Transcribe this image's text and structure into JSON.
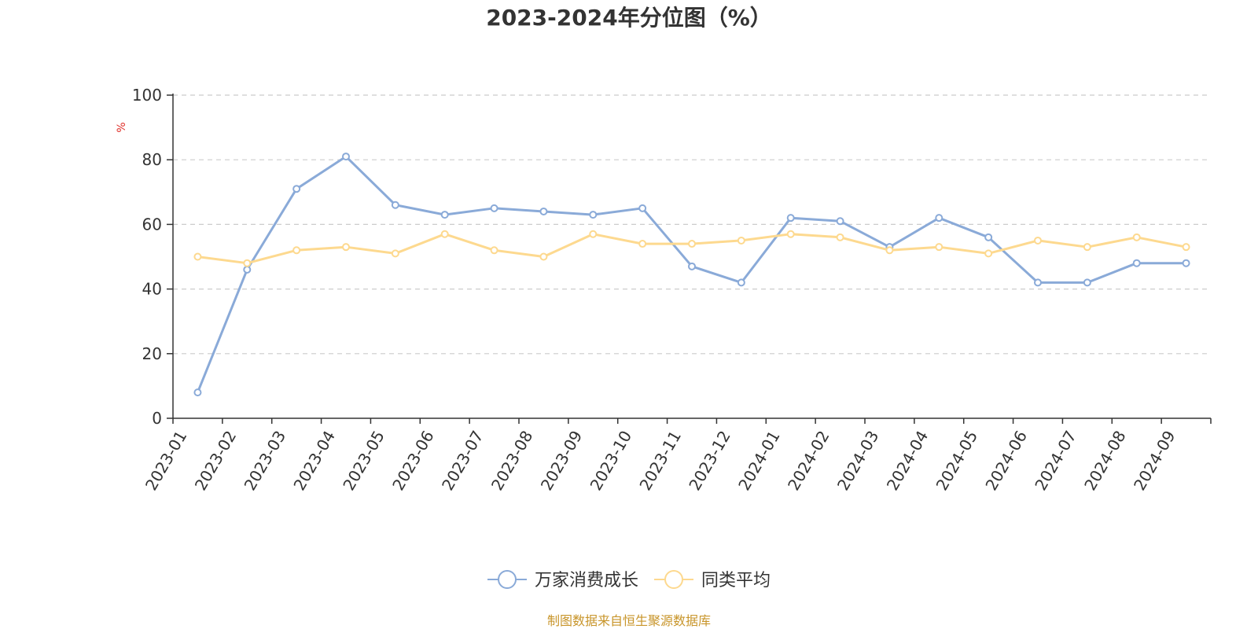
{
  "chart_data": {
    "type": "line",
    "title": "2023-2024年分位图（%）",
    "ylabel": "%",
    "xlabel": "",
    "ylim": [
      0,
      100
    ],
    "yticks": [
      0,
      20,
      40,
      60,
      80,
      100
    ],
    "grid": true,
    "legend_position": "bottom-center",
    "categories": [
      "2023-01",
      "2023-02",
      "2023-03",
      "2023-04",
      "2023-05",
      "2023-06",
      "2023-07",
      "2023-08",
      "2023-09",
      "2023-10",
      "2023-11",
      "2023-12",
      "2024-01",
      "2024-02",
      "2024-03",
      "2024-04",
      "2024-05",
      "2024-06",
      "2024-07",
      "2024-08",
      "2024-09"
    ],
    "series": [
      {
        "name": "万家消费成长",
        "color": "#8aaad8",
        "values": [
          8,
          46,
          71,
          81,
          66,
          63,
          65,
          64,
          63,
          65,
          47,
          42,
          62,
          61,
          53,
          62,
          56,
          42,
          42,
          48,
          48
        ]
      },
      {
        "name": "同类平均",
        "color": "#fdd98f",
        "values": [
          50,
          48,
          52,
          53,
          51,
          57,
          52,
          50,
          57,
          54,
          54,
          55,
          57,
          56,
          52,
          53,
          51,
          55,
          53,
          56,
          53
        ]
      }
    ]
  },
  "source_text": "制图数据来自恒生聚源数据库"
}
